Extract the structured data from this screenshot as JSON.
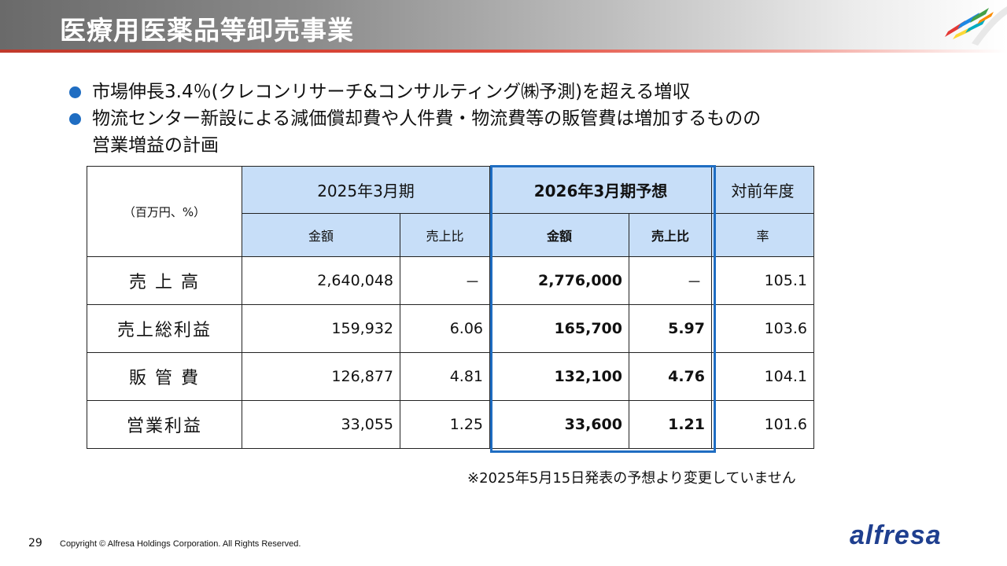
{
  "header": {
    "title": "医療用医薬品等卸売事業",
    "colors": {
      "accent_red": "#e24a3b",
      "brand_blue": "#1f6dc2",
      "table_header": "#c7def8"
    }
  },
  "bullets": [
    {
      "text": "市場伸長3.4％(クレコンリサーチ&コンサルティング㈱予測)を超える増収",
      "continuation": ""
    },
    {
      "text": "物流センター新設による減価償却費や人件費・物流費等の販管費は増加するものの",
      "continuation": "営業増益の計画"
    }
  ],
  "table": {
    "unit_label": "（百万円、%）",
    "group_headers": {
      "fy2025": "2025年3月期",
      "fy2026": "2026年3月期予想",
      "yoy": "対前年度"
    },
    "sub_headers": {
      "amount": "金額",
      "ratio": "売上比",
      "amount_b": "金額",
      "ratio_b": "売上比",
      "rate": "率"
    },
    "rows": [
      {
        "label": "売 上 高",
        "amt2025": "2,640,048",
        "ratio2025": "－",
        "amt2026": "2,776,000",
        "ratio2026": "－",
        "yoy": "105.1"
      },
      {
        "label": "売上総利益",
        "amt2025": "159,932",
        "ratio2025": "6.06",
        "amt2026": "165,700",
        "ratio2026": "5.97",
        "yoy": "103.6"
      },
      {
        "label": "販 管 費",
        "amt2025": "126,877",
        "ratio2025": "4.81",
        "amt2026": "132,100",
        "ratio2026": "4.76",
        "yoy": "104.1"
      },
      {
        "label": "営業利益",
        "amt2025": "33,055",
        "ratio2025": "1.25",
        "amt2026": "33,600",
        "ratio2026": "1.21",
        "yoy": "101.6"
      }
    ]
  },
  "note": "※2025年5月15日発表の予想より変更していません",
  "footer": {
    "page_number": "29",
    "copyright": "Copyright © Alfresa Holdings Corporation. All Rights Reserved.",
    "logo_text": "alfresa"
  }
}
